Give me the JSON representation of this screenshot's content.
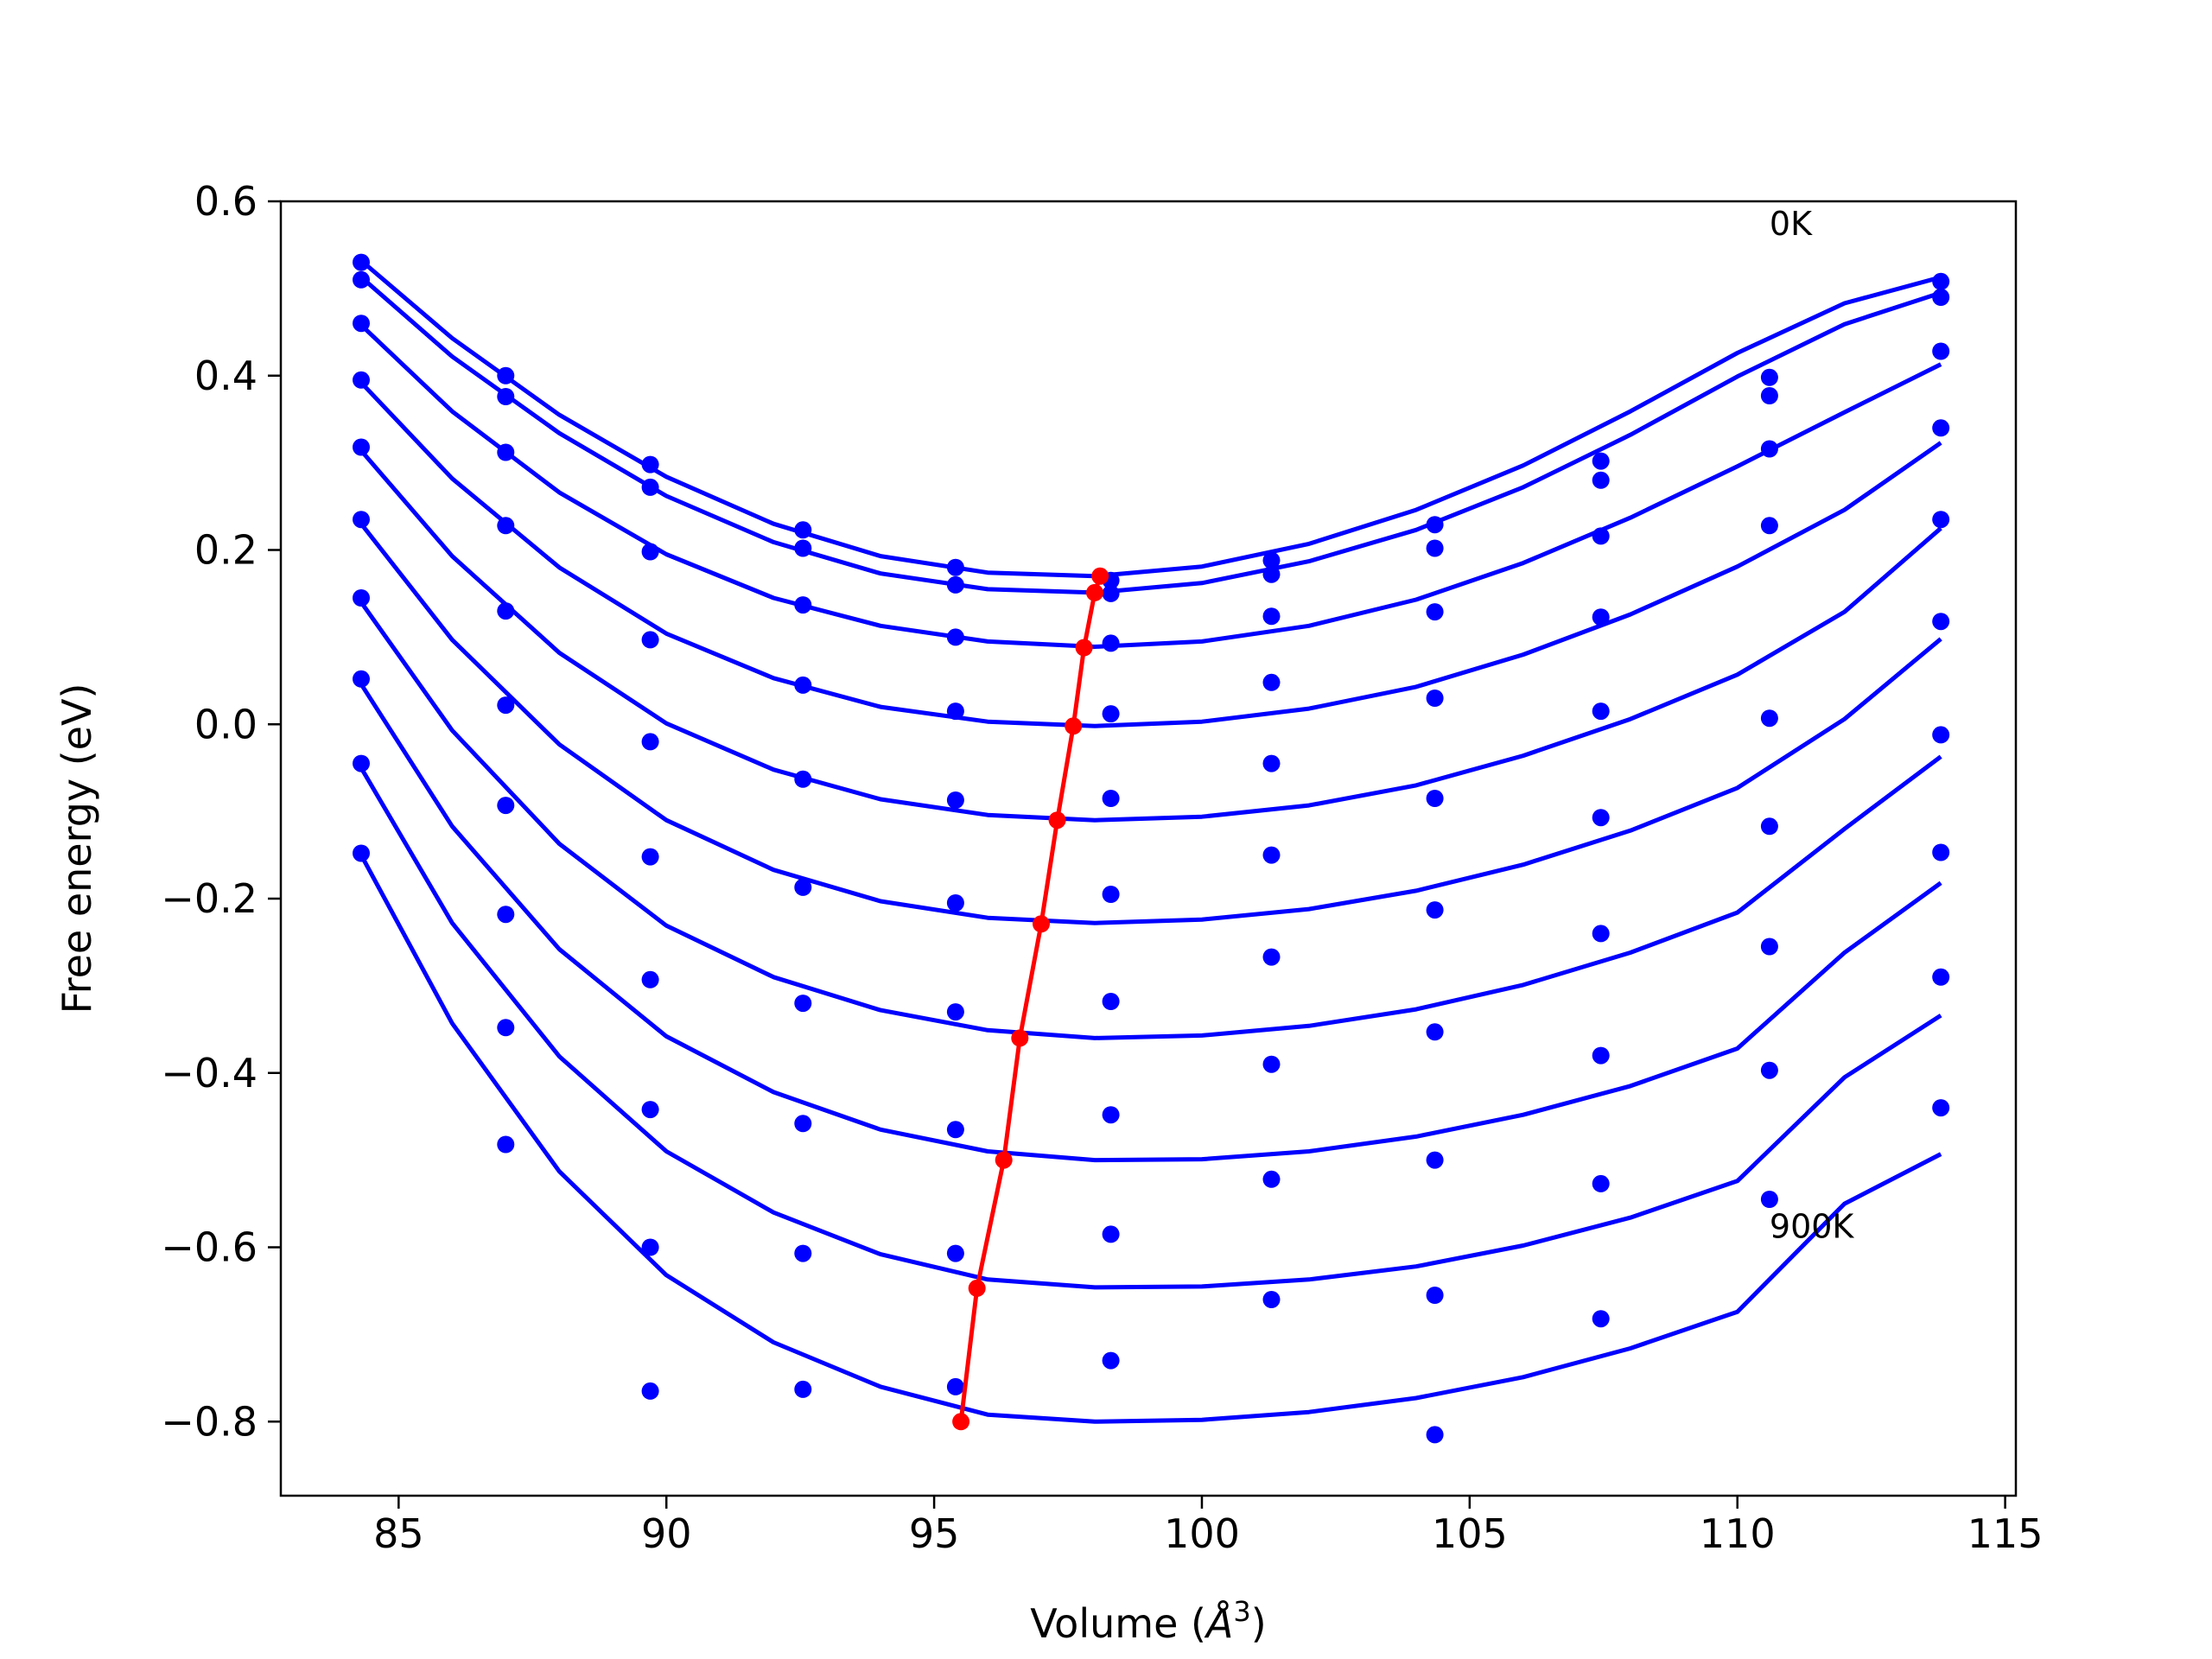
{
  "chart_data": {
    "type": "line",
    "title": "",
    "xlabel": "Volume (",
    "xlabel_symbol": "Å",
    "xlabel_exponent": "3",
    "xlabel_close": ")",
    "ylabel": "Free energy (eV)",
    "xlim": [
      82.8,
      115.2
    ],
    "ylim": [
      -0.885,
      0.6
    ],
    "xticks": [
      85,
      90,
      95,
      100,
      105,
      110,
      115
    ],
    "xtick_labels": [
      "85",
      "90",
      "95",
      "100",
      "105",
      "110",
      "115"
    ],
    "yticks": [
      -0.8,
      -0.6,
      -0.4,
      -0.2,
      0.0,
      0.2,
      0.4,
      0.6
    ],
    "ytick_labels": [
      "−0.8",
      "−0.6",
      "−0.4",
      "−0.2",
      "0.0",
      "0.2",
      "0.4",
      "0.6"
    ],
    "grid": false,
    "annotations": [
      {
        "text": "0K",
        "x": 110.6,
        "y": 0.575
      },
      {
        "text": "900K",
        "x": 110.6,
        "y": -0.575
      }
    ],
    "volumes": [
      84.3,
      87.0,
      89.7,
      92.55,
      95.4,
      98.3,
      101.3,
      104.35,
      107.45,
      110.6,
      113.8
    ],
    "series": [
      {
        "data": [
          0.53,
          0.4,
          0.298,
          0.223,
          0.18,
          0.165,
          0.188,
          0.229,
          0.302,
          0.398,
          0.508
        ],
        "fit": [
          [
            84.3,
            0.532
          ],
          [
            86,
            0.443
          ],
          [
            88,
            0.355
          ],
          [
            90,
            0.284
          ],
          [
            92,
            0.23
          ],
          [
            94,
            0.193
          ],
          [
            96,
            0.174
          ],
          [
            98,
            0.17
          ],
          [
            100,
            0.181
          ],
          [
            102,
            0.207
          ],
          [
            104,
            0.246
          ],
          [
            106,
            0.297
          ],
          [
            108,
            0.359
          ],
          [
            110,
            0.426
          ],
          [
            112,
            0.483
          ],
          [
            113.8,
            0.513
          ]
        ],
        "min": [
          98.1,
          0.17
        ]
      },
      {
        "data": [
          0.51,
          0.376,
          0.272,
          0.202,
          0.16,
          0.15,
          0.172,
          0.202,
          0.28,
          0.377,
          0.49
        ],
        "fit": [
          [
            84.3,
            0.513
          ],
          [
            86,
            0.422
          ],
          [
            88,
            0.334
          ],
          [
            90,
            0.262
          ],
          [
            92,
            0.209
          ],
          [
            94,
            0.173
          ],
          [
            96,
            0.155
          ],
          [
            98,
            0.151
          ],
          [
            100,
            0.162
          ],
          [
            102,
            0.187
          ],
          [
            104,
            0.223
          ],
          [
            106,
            0.272
          ],
          [
            108,
            0.332
          ],
          [
            110,
            0.399
          ],
          [
            112,
            0.459
          ],
          [
            113.8,
            0.495
          ]
        ],
        "min": [
          98.0,
          0.151
        ]
      },
      {
        "data": [
          0.46,
          0.312,
          0.198,
          0.137,
          0.1,
          0.093,
          0.124,
          0.129,
          0.216,
          0.316,
          0.428
        ],
        "fit": [
          [
            84.3,
            0.458
          ],
          [
            86,
            0.359
          ],
          [
            88,
            0.266
          ],
          [
            90,
            0.195
          ],
          [
            92,
            0.145
          ],
          [
            94,
            0.113
          ],
          [
            96,
            0.095
          ],
          [
            98,
            0.089
          ],
          [
            100,
            0.095
          ],
          [
            102,
            0.113
          ],
          [
            104,
            0.143
          ],
          [
            106,
            0.185
          ],
          [
            108,
            0.237
          ],
          [
            110,
            0.296
          ],
          [
            112,
            0.358
          ],
          [
            113.8,
            0.413
          ]
        ],
        "min": [
          97.8,
          0.088
        ]
      },
      {
        "data": [
          0.395,
          0.228,
          0.097,
          0.045,
          0.015,
          0.012,
          0.048,
          0.03,
          0.123,
          0.228,
          0.34
        ],
        "fit": [
          [
            84.3,
            0.392
          ],
          [
            86,
            0.282
          ],
          [
            88,
            0.18
          ],
          [
            90,
            0.104
          ],
          [
            92,
            0.053
          ],
          [
            94,
            0.02
          ],
          [
            96,
            0.003
          ],
          [
            98,
            -0.002
          ],
          [
            100,
            0.003
          ],
          [
            102,
            0.018
          ],
          [
            104,
            0.043
          ],
          [
            106,
            0.08
          ],
          [
            108,
            0.126
          ],
          [
            110,
            0.181
          ],
          [
            112,
            0.246
          ],
          [
            113.8,
            0.323
          ]
        ],
        "min": [
          97.6,
          -0.002
        ]
      },
      {
        "data": [
          0.318,
          0.13,
          -0.02,
          -0.063,
          -0.087,
          -0.085,
          -0.045,
          -0.085,
          0.015,
          0.007,
          0.235
        ],
        "fit": [
          [
            84.3,
            0.314
          ],
          [
            86,
            0.193
          ],
          [
            88,
            0.082
          ],
          [
            90,
            0.001
          ],
          [
            92,
            -0.052
          ],
          [
            94,
            -0.086
          ],
          [
            96,
            -0.104
          ],
          [
            98,
            -0.11
          ],
          [
            100,
            -0.106
          ],
          [
            102,
            -0.093
          ],
          [
            104,
            -0.07
          ],
          [
            106,
            -0.036
          ],
          [
            108,
            0.006
          ],
          [
            110,
            0.057
          ],
          [
            112,
            0.129
          ],
          [
            113.8,
            0.225
          ]
        ],
        "min": [
          97.3,
          -0.11
        ]
      },
      {
        "data": [
          0.235,
          0.022,
          -0.152,
          -0.187,
          -0.205,
          -0.195,
          -0.15,
          -0.213,
          -0.107,
          -0.117,
          0.118
        ],
        "fit": [
          [
            84.3,
            0.23
          ],
          [
            86,
            0.097
          ],
          [
            88,
            -0.023
          ],
          [
            90,
            -0.11
          ],
          [
            92,
            -0.167
          ],
          [
            94,
            -0.203
          ],
          [
            96,
            -0.222
          ],
          [
            98,
            -0.228
          ],
          [
            100,
            -0.224
          ],
          [
            102,
            -0.212
          ],
          [
            104,
            -0.191
          ],
          [
            106,
            -0.161
          ],
          [
            108,
            -0.122
          ],
          [
            110,
            -0.073
          ],
          [
            112,
            0.006
          ],
          [
            113.8,
            0.098
          ]
        ],
        "min": [
          97.0,
          -0.229
        ]
      },
      {
        "data": [
          0.145,
          -0.093,
          -0.293,
          -0.32,
          -0.33,
          -0.318,
          -0.267,
          -0.353,
          -0.24,
          -0.255,
          -0.012
        ],
        "fit": [
          [
            84.3,
            0.14
          ],
          [
            86,
            -0.007
          ],
          [
            88,
            -0.137
          ],
          [
            90,
            -0.231
          ],
          [
            92,
            -0.29
          ],
          [
            94,
            -0.328
          ],
          [
            96,
            -0.351
          ],
          [
            98,
            -0.36
          ],
          [
            100,
            -0.357
          ],
          [
            102,
            -0.346
          ],
          [
            104,
            -0.327
          ],
          [
            106,
            -0.299
          ],
          [
            108,
            -0.262
          ],
          [
            110,
            -0.216
          ],
          [
            112,
            -0.12
          ],
          [
            113.8,
            -0.037
          ]
        ],
        "min": [
          96.6,
          -0.36
        ]
      },
      {
        "data": [
          0.052,
          -0.218,
          -0.442,
          -0.458,
          -0.465,
          -0.448,
          -0.39,
          -0.5,
          -0.38,
          -0.397,
          -0.147
        ],
        "fit": [
          [
            84.3,
            0.046
          ],
          [
            86,
            -0.117
          ],
          [
            88,
            -0.258
          ],
          [
            90,
            -0.358
          ],
          [
            92,
            -0.422
          ],
          [
            94,
            -0.465
          ],
          [
            96,
            -0.49
          ],
          [
            98,
            -0.5
          ],
          [
            100,
            -0.499
          ],
          [
            102,
            -0.49
          ],
          [
            104,
            -0.473
          ],
          [
            106,
            -0.448
          ],
          [
            108,
            -0.415
          ],
          [
            110,
            -0.372
          ],
          [
            112,
            -0.262
          ],
          [
            113.8,
            -0.182
          ]
        ],
        "min": [
          96.3,
          -0.5
        ]
      },
      {
        "data": [
          -0.045,
          -0.348,
          -0.6,
          -0.607,
          -0.607,
          -0.585,
          -0.522,
          -0.655,
          -0.527,
          -0.545,
          -0.29
        ],
        "fit": [
          [
            84.3,
            -0.05
          ],
          [
            86,
            -0.228
          ],
          [
            88,
            -0.381
          ],
          [
            90,
            -0.49
          ],
          [
            92,
            -0.56
          ],
          [
            94,
            -0.608
          ],
          [
            96,
            -0.637
          ],
          [
            98,
            -0.646
          ],
          [
            100,
            -0.645
          ],
          [
            102,
            -0.637
          ],
          [
            104,
            -0.622
          ],
          [
            106,
            -0.598
          ],
          [
            108,
            -0.566
          ],
          [
            110,
            -0.524
          ],
          [
            112,
            -0.405
          ],
          [
            113.8,
            -0.334
          ]
        ],
        "min": [
          95.8,
          -0.647
        ]
      },
      {
        "data": [
          -0.148,
          -0.482,
          -0.765,
          -0.763,
          -0.76,
          -0.73,
          -0.66,
          -0.815,
          -0.682,
          null,
          -0.44
        ],
        "fit": [
          [
            84.3,
            -0.15
          ],
          [
            86,
            -0.343
          ],
          [
            88,
            -0.513
          ],
          [
            90,
            -0.632
          ],
          [
            92,
            -0.709
          ],
          [
            94,
            -0.76
          ],
          [
            96,
            -0.792
          ],
          [
            98,
            -0.8
          ],
          [
            100,
            -0.798
          ],
          [
            102,
            -0.789
          ],
          [
            104,
            -0.773
          ],
          [
            106,
            -0.749
          ],
          [
            108,
            -0.716
          ],
          [
            110,
            -0.674
          ],
          [
            112,
            -0.55
          ],
          [
            113.8,
            -0.493
          ]
        ],
        "min": [
          95.5,
          -0.8
        ]
      }
    ],
    "minimum_line": {
      "x": [
        95.5,
        95.8,
        96.3,
        96.6,
        97.0,
        97.3,
        97.6,
        97.8,
        98.0,
        98.1
      ],
      "y": [
        -0.8,
        -0.647,
        -0.5,
        -0.36,
        -0.229,
        -0.11,
        -0.002,
        0.088,
        0.151,
        0.17
      ]
    },
    "colors": {
      "series": "#0000ff",
      "minimum_line": "#ff0000",
      "axes": "#000000"
    }
  }
}
